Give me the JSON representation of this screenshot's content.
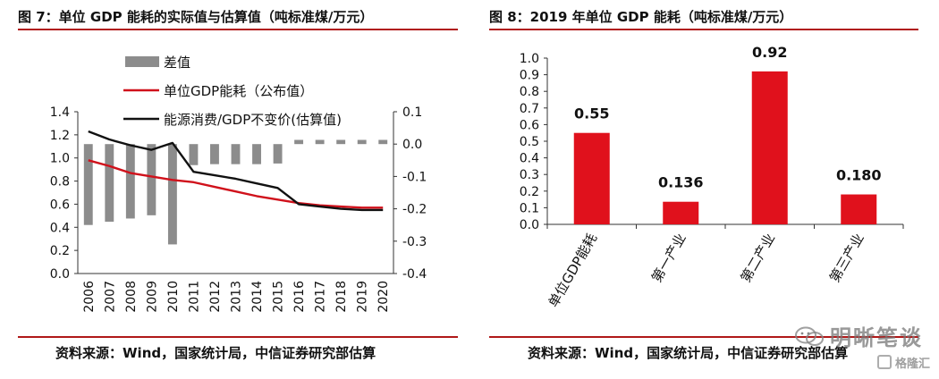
{
  "figure_left": {
    "title": "图 7：单位 GDP 能耗的实际值与估算值（吨标准煤/万元）",
    "source": "资料来源：Wind，国家统计局，中信证券研究部估算"
  },
  "figure_right": {
    "title": "图 8：2019 年单位 GDP 能耗（吨标准煤/万元）",
    "source": "资料来源：Wind，国家统计局，中信证券研究部估算"
  },
  "watermark": {
    "main_text": "明晰笔谈",
    "sub_text": "格隆汇"
  },
  "chart_data": [
    {
      "type": "bar+line",
      "x": [
        "2006",
        "2007",
        "2008",
        "2009",
        "2010",
        "2011",
        "2012",
        "2013",
        "2014",
        "2015",
        "2016",
        "2017",
        "2018",
        "2019",
        "2020"
      ],
      "ylim_left": [
        0.0,
        1.4
      ],
      "yticks_left": [
        "0.0",
        "0.2",
        "0.4",
        "0.6",
        "0.8",
        "1.0",
        "1.2",
        "1.4"
      ],
      "ylim_right": [
        -0.4,
        0.1
      ],
      "yticks_right": [
        "-0.4",
        "-0.3",
        "-0.2",
        "-0.1",
        "0.0",
        "0.1"
      ],
      "legend": [
        "差值",
        "单位GDP能耗（公布值）",
        "能源消费/GDP不变价(估算值)"
      ],
      "series": [
        {
          "name": "差值",
          "type": "bar",
          "axis": "right",
          "color": "#8c8c8c",
          "values": [
            -0.25,
            -0.24,
            -0.23,
            -0.22,
            -0.31,
            -0.065,
            -0.062,
            -0.062,
            -0.062,
            -0.06,
            0.013,
            0.013,
            0.013,
            0.013,
            0.013
          ]
        },
        {
          "name": "单位GDP能耗（公布值）",
          "type": "line",
          "axis": "left",
          "color": "#d0111b",
          "values": [
            0.98,
            0.93,
            0.87,
            0.84,
            0.81,
            0.79,
            0.75,
            0.71,
            0.67,
            0.64,
            0.61,
            0.59,
            0.58,
            0.57,
            0.57
          ]
        },
        {
          "name": "能源消费/GDP不变价(估算值)",
          "type": "line",
          "axis": "left",
          "color": "#111111",
          "values": [
            1.23,
            1.16,
            1.11,
            1.07,
            1.13,
            0.88,
            0.85,
            0.82,
            0.78,
            0.74,
            0.6,
            0.58,
            0.56,
            0.55,
            0.55
          ]
        }
      ]
    },
    {
      "type": "bar",
      "categories": [
        "单位GDP能耗",
        "第一产业",
        "第二产业",
        "第三产业"
      ],
      "values": [
        0.55,
        0.136,
        0.92,
        0.18
      ],
      "value_labels": [
        "0.55",
        "0.136",
        "0.92",
        "0.180"
      ],
      "ylim": [
        0.0,
        1.0
      ],
      "yticks": [
        "0.0",
        "0.1",
        "0.2",
        "0.3",
        "0.4",
        "0.5",
        "0.6",
        "0.7",
        "0.8",
        "0.9",
        "1.0"
      ],
      "color": "#e0111c"
    }
  ]
}
